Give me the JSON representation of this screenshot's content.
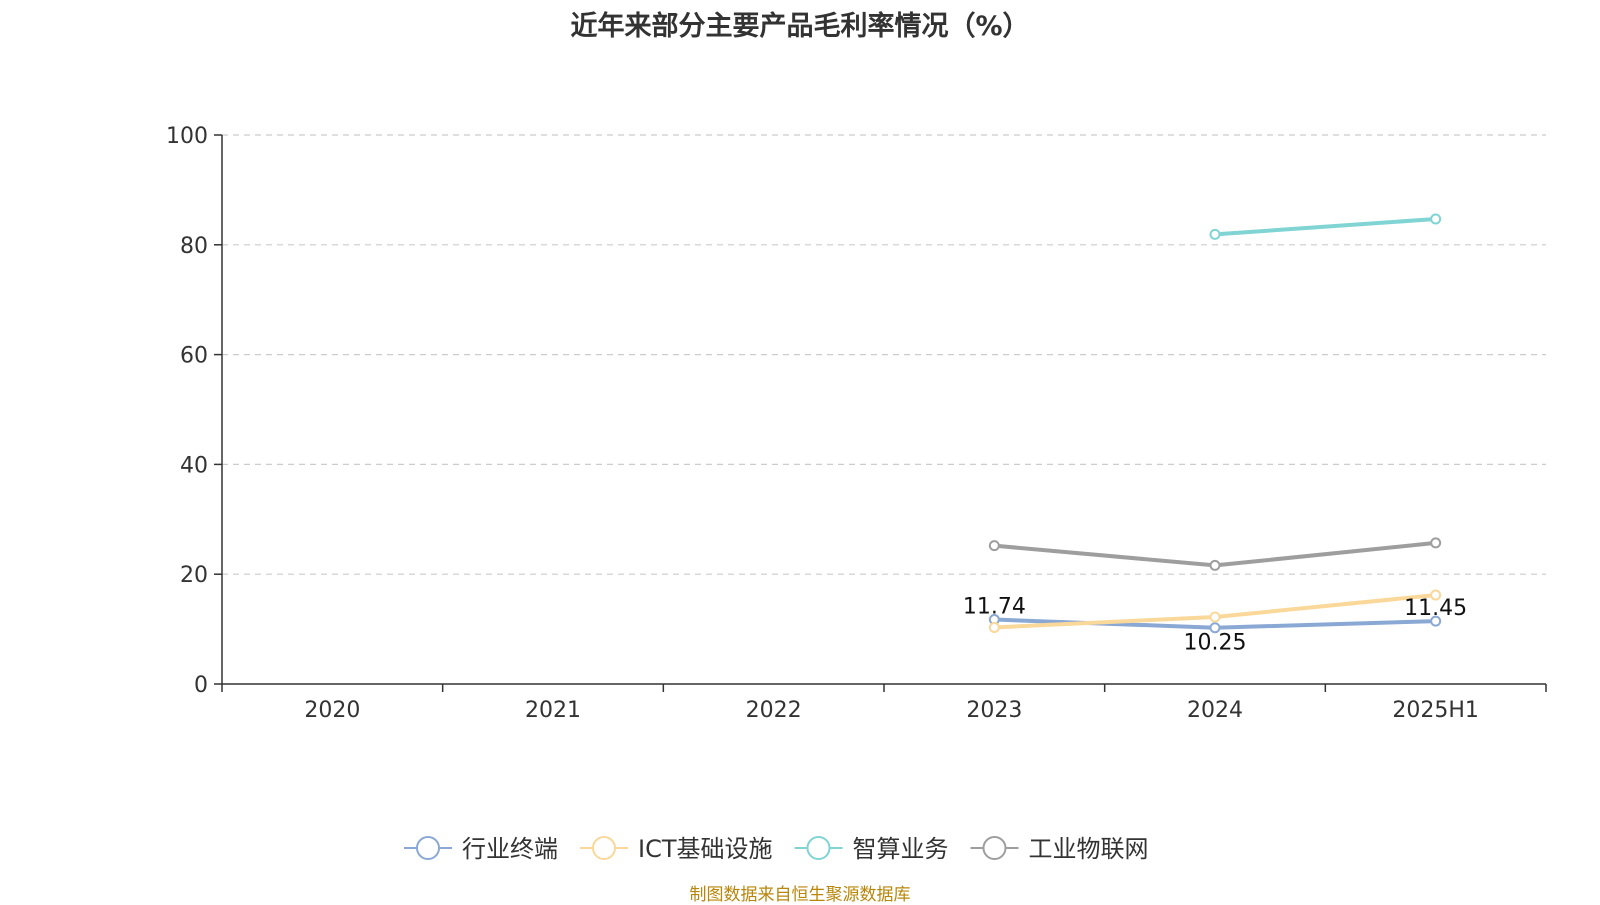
{
  "chart_data": {
    "type": "line",
    "title": "近年来部分主要产品毛利率情况（%）",
    "source_note": "制图数据来自恒生聚源数据库",
    "categories": [
      "2020",
      "2021",
      "2022",
      "2023",
      "2024",
      "2025H1"
    ],
    "ylim": [
      0,
      100
    ],
    "yticks": [
      0,
      20,
      40,
      60,
      80,
      100
    ],
    "grid": "horizontal-dashed",
    "legend_position": "bottom",
    "series": [
      {
        "name": "行业终端",
        "color": "#8aa8d4",
        "values": [
          null,
          null,
          null,
          11.74,
          10.25,
          11.45
        ],
        "labels": [
          "",
          "",
          "",
          "11.74",
          "10.25",
          "11.45"
        ]
      },
      {
        "name": "ICT基础设施",
        "color": "#f9d89a",
        "values": [
          null,
          null,
          null,
          10.3,
          12.2,
          16.2
        ],
        "labels": [
          "",
          "",
          "",
          "",
          "",
          ""
        ]
      },
      {
        "name": "智算业务",
        "color": "#80d4d4",
        "values": [
          null,
          null,
          null,
          null,
          81.9,
          84.7
        ],
        "labels": [
          "",
          "",
          "",
          "",
          "",
          ""
        ]
      },
      {
        "name": "工业物联网",
        "color": "#9e9e9e",
        "values": [
          null,
          null,
          null,
          25.2,
          21.6,
          25.7
        ],
        "labels": [
          "",
          "",
          "",
          "",
          "",
          ""
        ]
      }
    ]
  }
}
